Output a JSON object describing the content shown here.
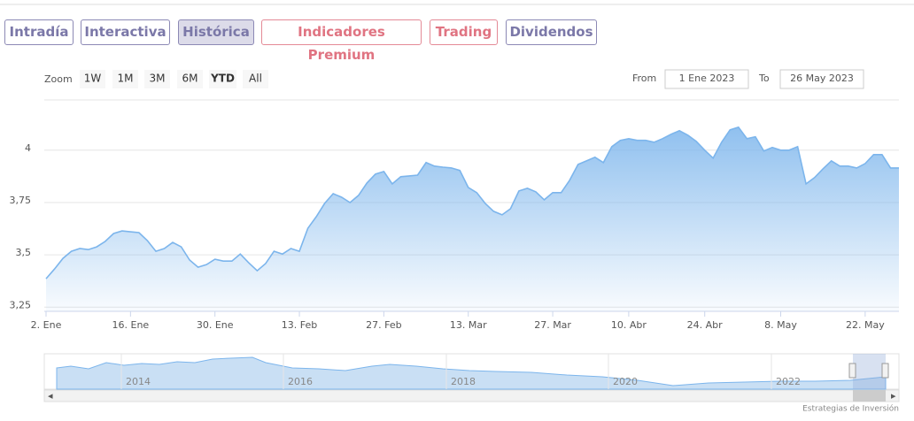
{
  "tabs": [
    "Intradía",
    "Interactiva",
    "Histórica",
    "Indicadores Premium",
    "Trading",
    "Dividendos"
  ],
  "zoom": {
    "label": "Zoom",
    "buttons": [
      "1W",
      "1M",
      "3M",
      "6M",
      "YTD",
      "All"
    ]
  },
  "range": {
    "from_label": "From",
    "from": "1 Ene 2023",
    "to_label": "To",
    "to": "26 May 2023"
  },
  "navigator": {
    "labels": [
      "2014",
      "2016",
      "2018",
      "2020",
      "2022"
    ]
  },
  "credit": "Estrategias de Inversión",
  "chart_data": {
    "type": "area",
    "color": "#7cb5ec",
    "grid": true,
    "categories": [
      "2. Ene",
      null,
      null,
      null,
      null,
      null,
      null,
      null,
      null,
      null,
      "16. Ene",
      null,
      null,
      null,
      null,
      null,
      null,
      null,
      null,
      null,
      "30. Ene",
      null,
      null,
      null,
      null,
      null,
      null,
      null,
      null,
      null,
      "13. Feb",
      null,
      null,
      null,
      null,
      null,
      null,
      null,
      null,
      null,
      "27. Feb",
      null,
      null,
      null,
      null,
      null,
      null,
      null,
      null,
      null,
      "13. Mar",
      null,
      null,
      null,
      null,
      null,
      null,
      null,
      null,
      null,
      "27. Mar",
      null,
      null,
      null,
      null,
      null,
      null,
      null,
      null,
      "10. Abr",
      null,
      null,
      null,
      null,
      null,
      null,
      null,
      null,
      "24. Abr",
      null,
      null,
      null,
      null,
      null,
      null,
      null,
      null,
      "8. May",
      null,
      null,
      null,
      null,
      null,
      null,
      null,
      null,
      null,
      "22. May",
      null,
      null,
      null,
      null
    ],
    "values": [
      3.386,
      3.432,
      3.483,
      3.517,
      3.53,
      3.525,
      3.538,
      3.564,
      3.602,
      3.614,
      3.61,
      3.606,
      3.568,
      3.517,
      3.53,
      3.559,
      3.538,
      3.475,
      3.441,
      3.453,
      3.479,
      3.47,
      3.47,
      3.504,
      3.462,
      3.424,
      3.458,
      3.517,
      3.504,
      3.53,
      3.517,
      3.627,
      3.682,
      3.746,
      3.792,
      3.775,
      3.75,
      3.784,
      3.843,
      3.886,
      3.898,
      3.839,
      3.873,
      3.877,
      3.881,
      3.941,
      3.924,
      3.919,
      3.915,
      3.903,
      3.822,
      3.797,
      3.746,
      3.708,
      3.691,
      3.72,
      3.805,
      3.818,
      3.801,
      3.763,
      3.797,
      3.797,
      3.856,
      3.932,
      3.949,
      3.966,
      3.941,
      4.017,
      4.047,
      4.055,
      4.047,
      4.047,
      4.038,
      4.055,
      4.076,
      4.093,
      4.072,
      4.042,
      4.0,
      3.962,
      4.038,
      4.097,
      4.11,
      4.055,
      4.064,
      3.996,
      4.013,
      4.0,
      4.0,
      4.017,
      3.839,
      3.869,
      3.911,
      3.949,
      3.924,
      3.924,
      3.915,
      3.936,
      3.979,
      3.979,
      3.915,
      3.915
    ],
    "ylim": [
      3.23,
      4.24
    ],
    "yticks": [
      {
        "value": 3.25,
        "label": "3,25"
      },
      {
        "value": 3.5,
        "label": "3,5"
      },
      {
        "value": 3.75,
        "label": "3,75"
      },
      4
    ]
  }
}
